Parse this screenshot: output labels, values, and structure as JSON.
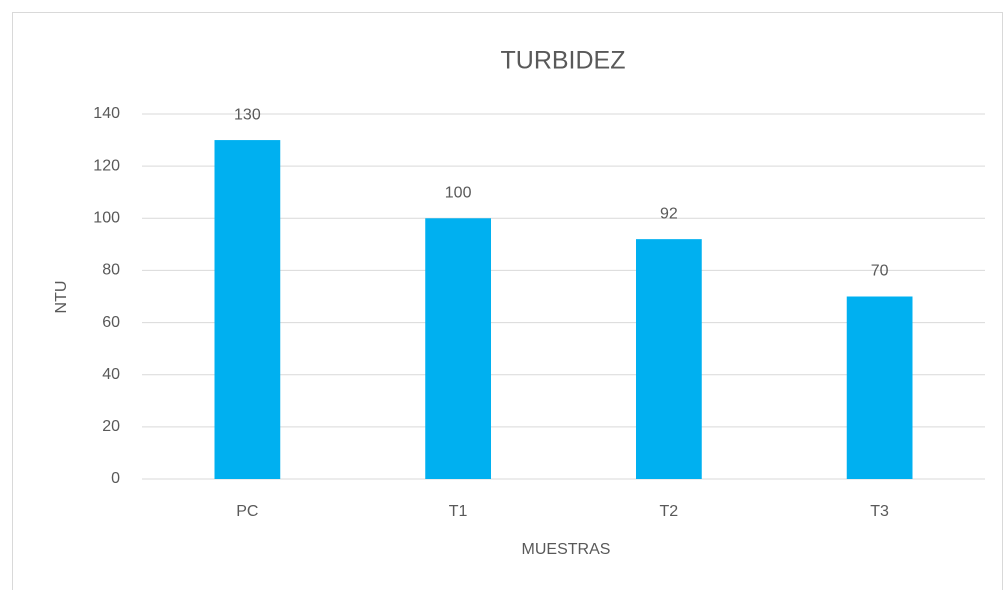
{
  "chart_data": {
    "type": "bar",
    "title": "TURBIDEZ",
    "x_label": "MUESTRAS",
    "y_label": "NTU",
    "categories": [
      "PC",
      "T1",
      "T2",
      "T3"
    ],
    "values": [
      130,
      100,
      92,
      70
    ],
    "color": "#00b0f0",
    "ylim": [
      0,
      140
    ],
    "yticks": [
      0,
      20,
      40,
      60,
      80,
      100,
      120,
      140
    ],
    "grid": true,
    "data_labels": true
  }
}
